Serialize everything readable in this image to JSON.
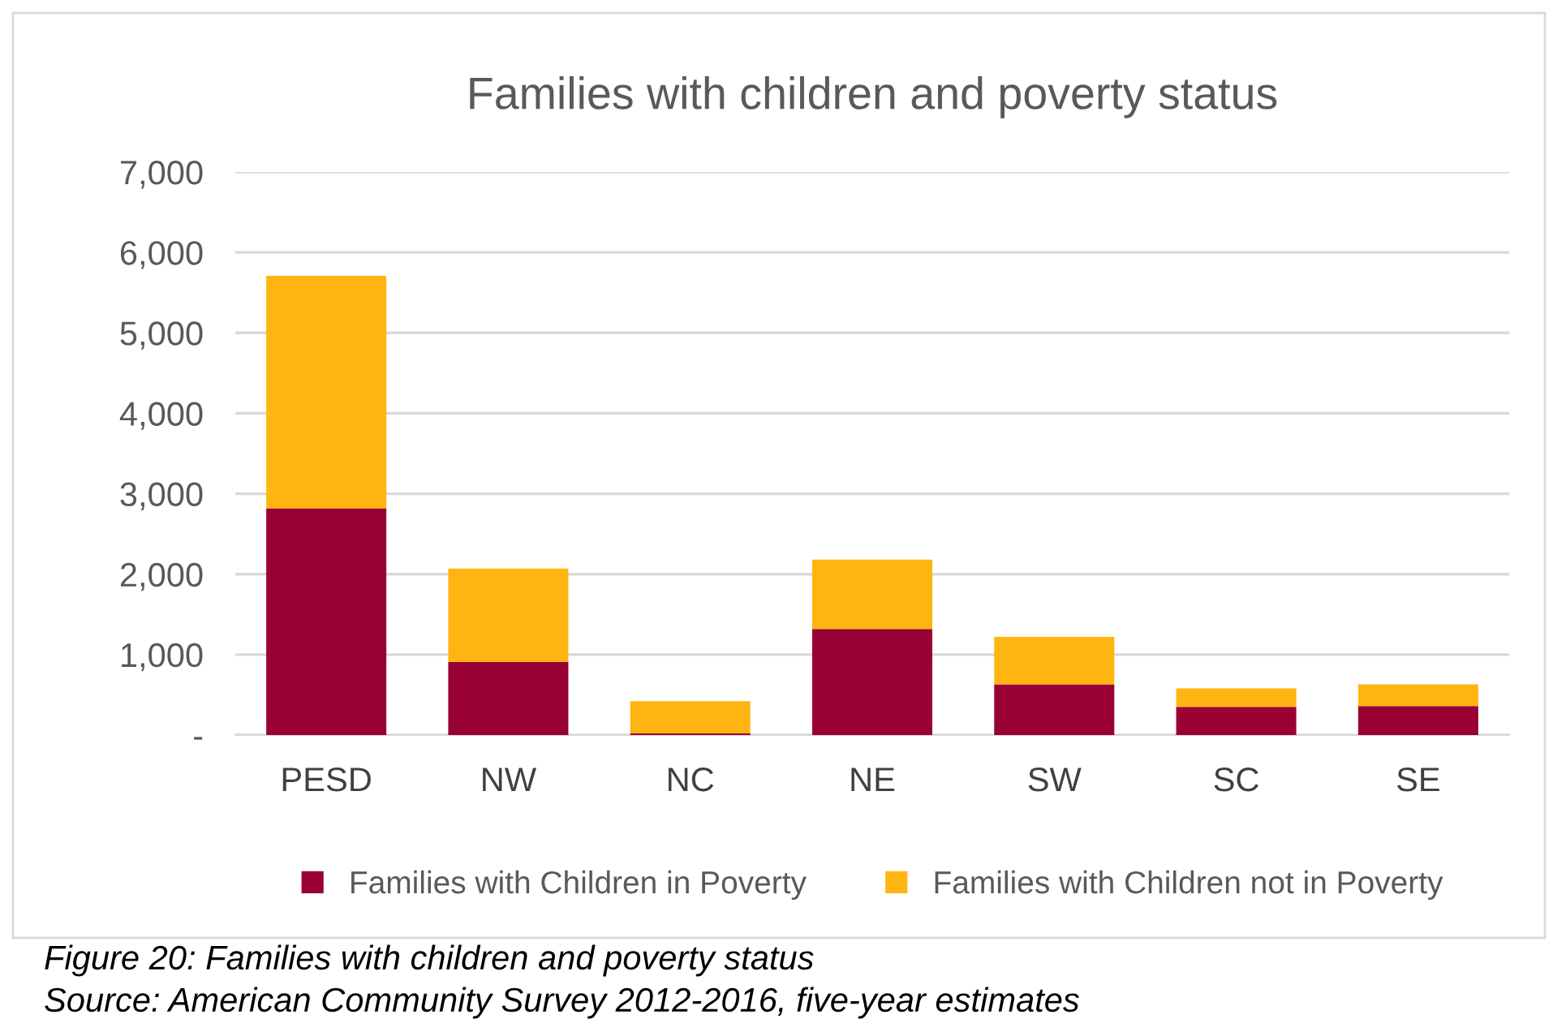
{
  "chart_data": {
    "type": "bar",
    "title": "Families with children and poverty status",
    "categories": [
      "PESD",
      "NW",
      "NC",
      "NE",
      "SW",
      "SC",
      "SE"
    ],
    "stacked": true,
    "series": [
      {
        "name": "Families with Children in Poverty",
        "color": "#990033",
        "values": [
          2820,
          910,
          20,
          1320,
          630,
          350,
          360
        ]
      },
      {
        "name": "Families with Children not in Poverty",
        "color": "#ffb511",
        "values": [
          2890,
          1160,
          400,
          860,
          590,
          230,
          270
        ]
      }
    ],
    "ylim": [
      0,
      7000
    ],
    "yticks": [
      {
        "value": 0,
        "label": "-"
      },
      {
        "value": 1000,
        "label": "1,000"
      },
      {
        "value": 2000,
        "label": "2,000"
      },
      {
        "value": 3000,
        "label": "3,000"
      },
      {
        "value": 4000,
        "label": "4,000"
      },
      {
        "value": 5000,
        "label": "5,000"
      },
      {
        "value": 6000,
        "label": "6,000"
      },
      {
        "value": 7000,
        "label": "7,000"
      }
    ],
    "grid": "y",
    "legend": "bottom",
    "annotations": [
      "Figure 20: Families with children and poverty status",
      "Source: American Community Survey 2012-2016, five-year estimates"
    ]
  }
}
